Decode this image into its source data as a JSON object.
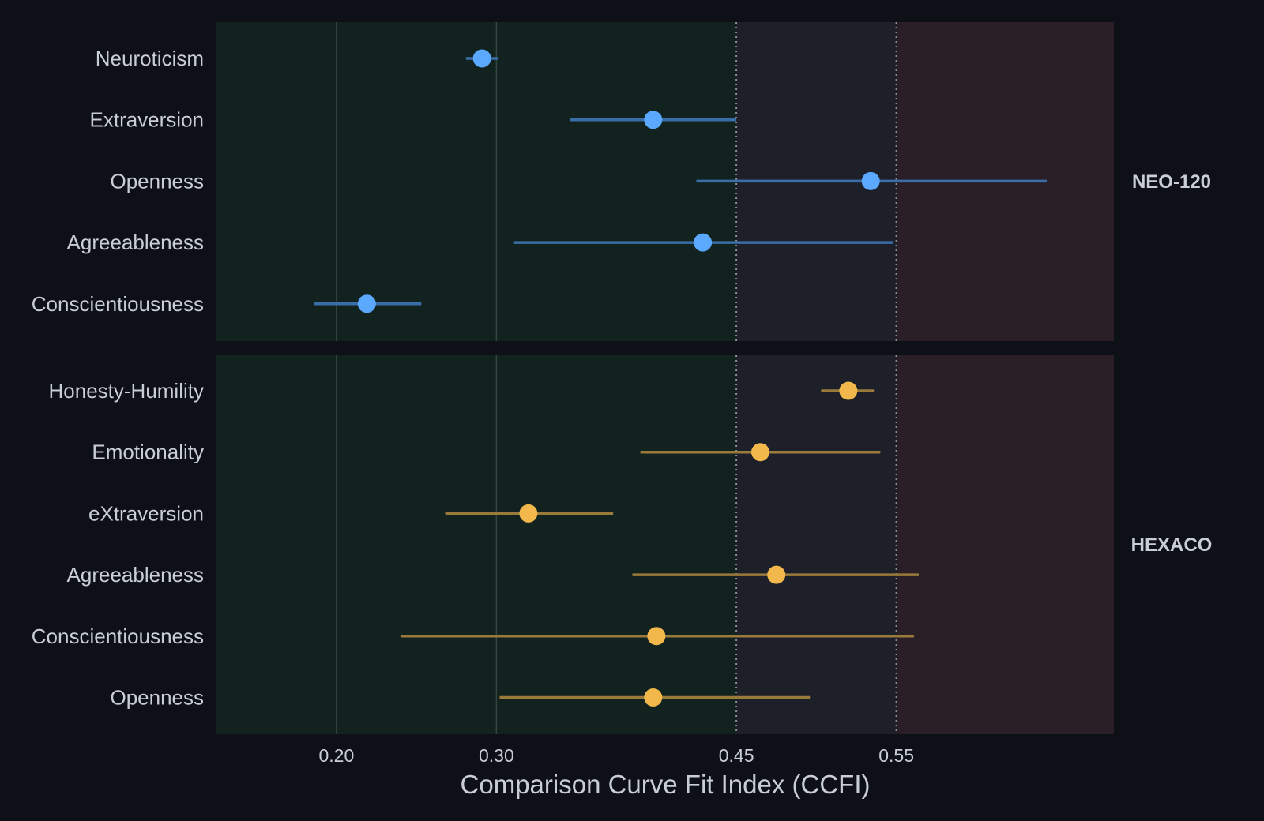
{
  "chart_data": {
    "type": "scatter",
    "subtype": "dot-and-interval, faceted",
    "xlabel": "Comparison Curve Fit Index (CCFI)",
    "xlim": [
      0.125,
      0.686
    ],
    "xticks": [
      0.2,
      0.3,
      0.45,
      0.55
    ],
    "xtick_labels": [
      "0.20",
      "0.30",
      "0.45",
      "0.55"
    ],
    "reference_lines": [
      0.45,
      0.55
    ],
    "zones": [
      {
        "from": 0.125,
        "to": 0.45,
        "color": "#12221f"
      },
      {
        "from": 0.45,
        "to": 0.55,
        "color": "#1d2029"
      },
      {
        "from": 0.55,
        "to": 0.686,
        "color": "#2a1f26"
      }
    ],
    "grid_x": true,
    "facets": [
      {
        "name": "NEO-120",
        "point_color": "#5aa9ff",
        "bar_color": "#3a6ea8",
        "rows": [
          {
            "label": "Neuroticism",
            "value": 0.291,
            "low": 0.281,
            "high": 0.301
          },
          {
            "label": "Extraversion",
            "value": 0.398,
            "low": 0.346,
            "high": 0.45
          },
          {
            "label": "Openness",
            "value": 0.534,
            "low": 0.425,
            "high": 0.644
          },
          {
            "label": "Agreeableness",
            "value": 0.429,
            "low": 0.311,
            "high": 0.548
          },
          {
            "label": "Conscientiousness",
            "value": 0.219,
            "low": 0.186,
            "high": 0.253
          }
        ]
      },
      {
        "name": "HEXACO",
        "point_color": "#f2b84b",
        "bar_color": "#9a7a3a",
        "rows": [
          {
            "label": "Honesty-Humility",
            "value": 0.52,
            "low": 0.503,
            "high": 0.536
          },
          {
            "label": "Emotionality",
            "value": 0.465,
            "low": 0.39,
            "high": 0.54
          },
          {
            "label": "eXtraversion",
            "value": 0.32,
            "low": 0.268,
            "high": 0.373
          },
          {
            "label": "Agreeableness",
            "value": 0.475,
            "low": 0.385,
            "high": 0.564
          },
          {
            "label": "Conscientiousness",
            "value": 0.4,
            "low": 0.24,
            "high": 0.561
          },
          {
            "label": "Openness",
            "value": 0.398,
            "low": 0.302,
            "high": 0.496
          }
        ]
      }
    ]
  }
}
